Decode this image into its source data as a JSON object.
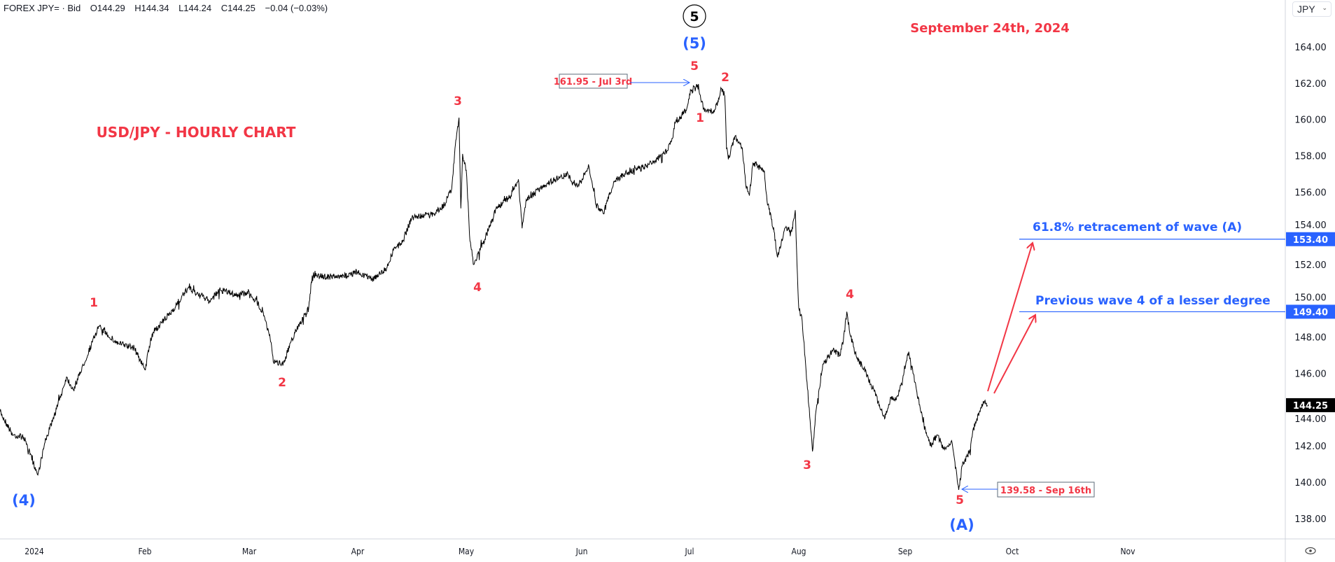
{
  "header": {
    "symbol": "FOREX JPY= · Bid",
    "open": "O144.29",
    "high": "H144.34",
    "low": "L144.24",
    "close": "C144.25",
    "change": "−0.04 (−0.03%)"
  },
  "currency_selector": {
    "value": "JPY",
    "icon": "chevron-down-icon"
  },
  "colors": {
    "price_line": "#000000",
    "wave_label": "#f23645",
    "degree_label": "#2962ff",
    "level_line": "#2962ff",
    "last_price_bg": "#000000"
  },
  "annotations": {
    "date_title": "September 24th, 2024",
    "chart_title": "USD/JPY - HOURLY CHART",
    "circled_5": "5",
    "degree_5": "(5)",
    "degree_4": "(4)",
    "degree_A": "(A)",
    "high_box": "161.95 - Jul 3rd",
    "low_box": "139.58 - Sep 16th",
    "level_1_text": "61.8% retracement of wave (A)",
    "level_2_text": "Previous wave 4 of a lesser degree",
    "waves": {
      "w1a": "1",
      "w2a": "2",
      "w3a": "3",
      "w4a": "4",
      "w5a": "5",
      "w1b": "1",
      "w2b": "2",
      "w3b": "3",
      "w4b": "4",
      "w5b": "5"
    }
  },
  "chart_data": {
    "type": "line",
    "title": "USD/JPY - HOURLY CHART",
    "xlabel": "",
    "ylabel": "",
    "ylim": [
      137,
      165.3
    ],
    "y_ticks": [
      "164.00",
      "162.00",
      "160.00",
      "158.00",
      "156.00",
      "154.00",
      "152.00",
      "150.00",
      "148.00",
      "146.00",
      "144.00",
      "142.00",
      "140.00",
      "138.00"
    ],
    "x_ticks": [
      "2024",
      "Feb",
      "Mar",
      "Apr",
      "May",
      "Jun",
      "Jul",
      "Aug",
      "Sep",
      "Oct",
      "Nov"
    ],
    "grid": false,
    "levels": [
      {
        "value": 153.4,
        "label": "153.40"
      },
      {
        "value": 149.4,
        "label": "149.40"
      }
    ],
    "last_price": {
      "value": 144.25,
      "label": "144.25"
    },
    "series": [
      {
        "points": [
          [
            "2023-12-22",
            143.9
          ],
          [
            "2023-12-26",
            142.6
          ],
          [
            "2023-12-29",
            142.5
          ],
          [
            "2024-01-02",
            140.4
          ],
          [
            "2024-01-04",
            142.2
          ],
          [
            "2024-01-08",
            144.5
          ],
          [
            "2024-01-10",
            145.8
          ],
          [
            "2024-01-12",
            145.1
          ],
          [
            "2024-01-17",
            147.6
          ],
          [
            "2024-01-19",
            148.6
          ],
          [
            "2024-01-24",
            147.7
          ],
          [
            "2024-01-29",
            147.4
          ],
          [
            "2024-02-01",
            146.2
          ],
          [
            "2024-02-03",
            148.2
          ],
          [
            "2024-02-08",
            149.3
          ],
          [
            "2024-02-13",
            150.7
          ],
          [
            "2024-02-19",
            150.0
          ],
          [
            "2024-02-22",
            150.6
          ],
          [
            "2024-02-27",
            150.3
          ],
          [
            "2024-03-01",
            150.5
          ],
          [
            "2024-03-05",
            149.4
          ],
          [
            "2024-03-07",
            147.9
          ],
          [
            "2024-03-08",
            146.6
          ],
          [
            "2024-03-11",
            146.6
          ],
          [
            "2024-03-13",
            147.8
          ],
          [
            "2024-03-15",
            148.6
          ],
          [
            "2024-03-18",
            149.6
          ],
          [
            "2024-03-19",
            151.4
          ],
          [
            "2024-03-27",
            151.3
          ],
          [
            "2024-04-01",
            151.6
          ],
          [
            "2024-04-05",
            151.2
          ],
          [
            "2024-04-09",
            151.8
          ],
          [
            "2024-04-11",
            152.9
          ],
          [
            "2024-04-13",
            153.1
          ],
          [
            "2024-04-16",
            154.6
          ],
          [
            "2024-04-22",
            154.8
          ],
          [
            "2024-04-25",
            155.3
          ],
          [
            "2024-04-27",
            156.2
          ],
          [
            "2024-04-28",
            158.6
          ],
          [
            "2024-04-29",
            160.1
          ],
          [
            "2024-04-29T12:00",
            155.1
          ],
          [
            "2024-04-30",
            158.1
          ],
          [
            "2024-05-01",
            157.2
          ],
          [
            "2024-05-02",
            153.3
          ],
          [
            "2024-05-03",
            152.0
          ],
          [
            "2024-05-06",
            153.4
          ],
          [
            "2024-05-09",
            155.1
          ],
          [
            "2024-05-13",
            155.8
          ],
          [
            "2024-05-15",
            156.7
          ],
          [
            "2024-05-16",
            154.0
          ],
          [
            "2024-05-17",
            155.5
          ],
          [
            "2024-05-22",
            156.4
          ],
          [
            "2024-05-28",
            157.0
          ],
          [
            "2024-05-31",
            156.3
          ],
          [
            "2024-06-03",
            157.4
          ],
          [
            "2024-06-05",
            155.3
          ],
          [
            "2024-06-07",
            154.8
          ],
          [
            "2024-06-10",
            156.6
          ],
          [
            "2024-06-14",
            157.1
          ],
          [
            "2024-06-19",
            157.4
          ],
          [
            "2024-06-24",
            158.1
          ],
          [
            "2024-06-26",
            158.8
          ],
          [
            "2024-06-27",
            159.8
          ],
          [
            "2024-06-30",
            160.5
          ],
          [
            "2024-07-01",
            161.4
          ],
          [
            "2024-07-03",
            161.95
          ],
          [
            "2024-07-05",
            160.6
          ],
          [
            "2024-07-08",
            160.4
          ],
          [
            "2024-07-09",
            161.0
          ],
          [
            "2024-07-10",
            161.7
          ],
          [
            "2024-07-11",
            161.3
          ],
          [
            "2024-07-11T12:00",
            158.4
          ],
          [
            "2024-07-12",
            157.8
          ],
          [
            "2024-07-14",
            159.1
          ],
          [
            "2024-07-16",
            158.4
          ],
          [
            "2024-07-17",
            156.3
          ],
          [
            "2024-07-18",
            155.8
          ],
          [
            "2024-07-19",
            157.6
          ],
          [
            "2024-07-22",
            157.2
          ],
          [
            "2024-07-23",
            155.5
          ],
          [
            "2024-07-25",
            153.8
          ],
          [
            "2024-07-26",
            152.4
          ],
          [
            "2024-07-28",
            154.0
          ],
          [
            "2024-07-30",
            153.8
          ],
          [
            "2024-07-31",
            155.0
          ],
          [
            "2024-07-31T12:00",
            152.0
          ],
          [
            "2024-08-01",
            149.6
          ],
          [
            "2024-08-02",
            148.9
          ],
          [
            "2024-08-03",
            146.5
          ],
          [
            "2024-08-05",
            141.7
          ],
          [
            "2024-08-06",
            143.9
          ],
          [
            "2024-08-08",
            146.5
          ],
          [
            "2024-08-11",
            147.3
          ],
          [
            "2024-08-13",
            147.0
          ],
          [
            "2024-08-14",
            147.8
          ],
          [
            "2024-08-15",
            149.4
          ],
          [
            "2024-08-16",
            148.1
          ],
          [
            "2024-08-18",
            146.8
          ],
          [
            "2024-08-20",
            146.3
          ],
          [
            "2024-08-23",
            145.0
          ],
          [
            "2024-08-26",
            143.5
          ],
          [
            "2024-08-28",
            144.7
          ],
          [
            "2024-08-29",
            144.5
          ],
          [
            "2024-08-31",
            145.4
          ],
          [
            "2024-09-02",
            147.2
          ],
          [
            "2024-09-04",
            145.3
          ],
          [
            "2024-09-06",
            143.3
          ],
          [
            "2024-09-08",
            142.0
          ],
          [
            "2024-09-10",
            142.6
          ],
          [
            "2024-09-12",
            141.8
          ],
          [
            "2024-09-14",
            142.3
          ],
          [
            "2024-09-16",
            139.58
          ],
          [
            "2024-09-17",
            140.9
          ],
          [
            "2024-09-19",
            141.7
          ],
          [
            "2024-09-20",
            142.9
          ],
          [
            "2024-09-22",
            143.9
          ],
          [
            "2024-09-23",
            144.4
          ],
          [
            "2024-09-24",
            144.25
          ]
        ]
      }
    ]
  }
}
